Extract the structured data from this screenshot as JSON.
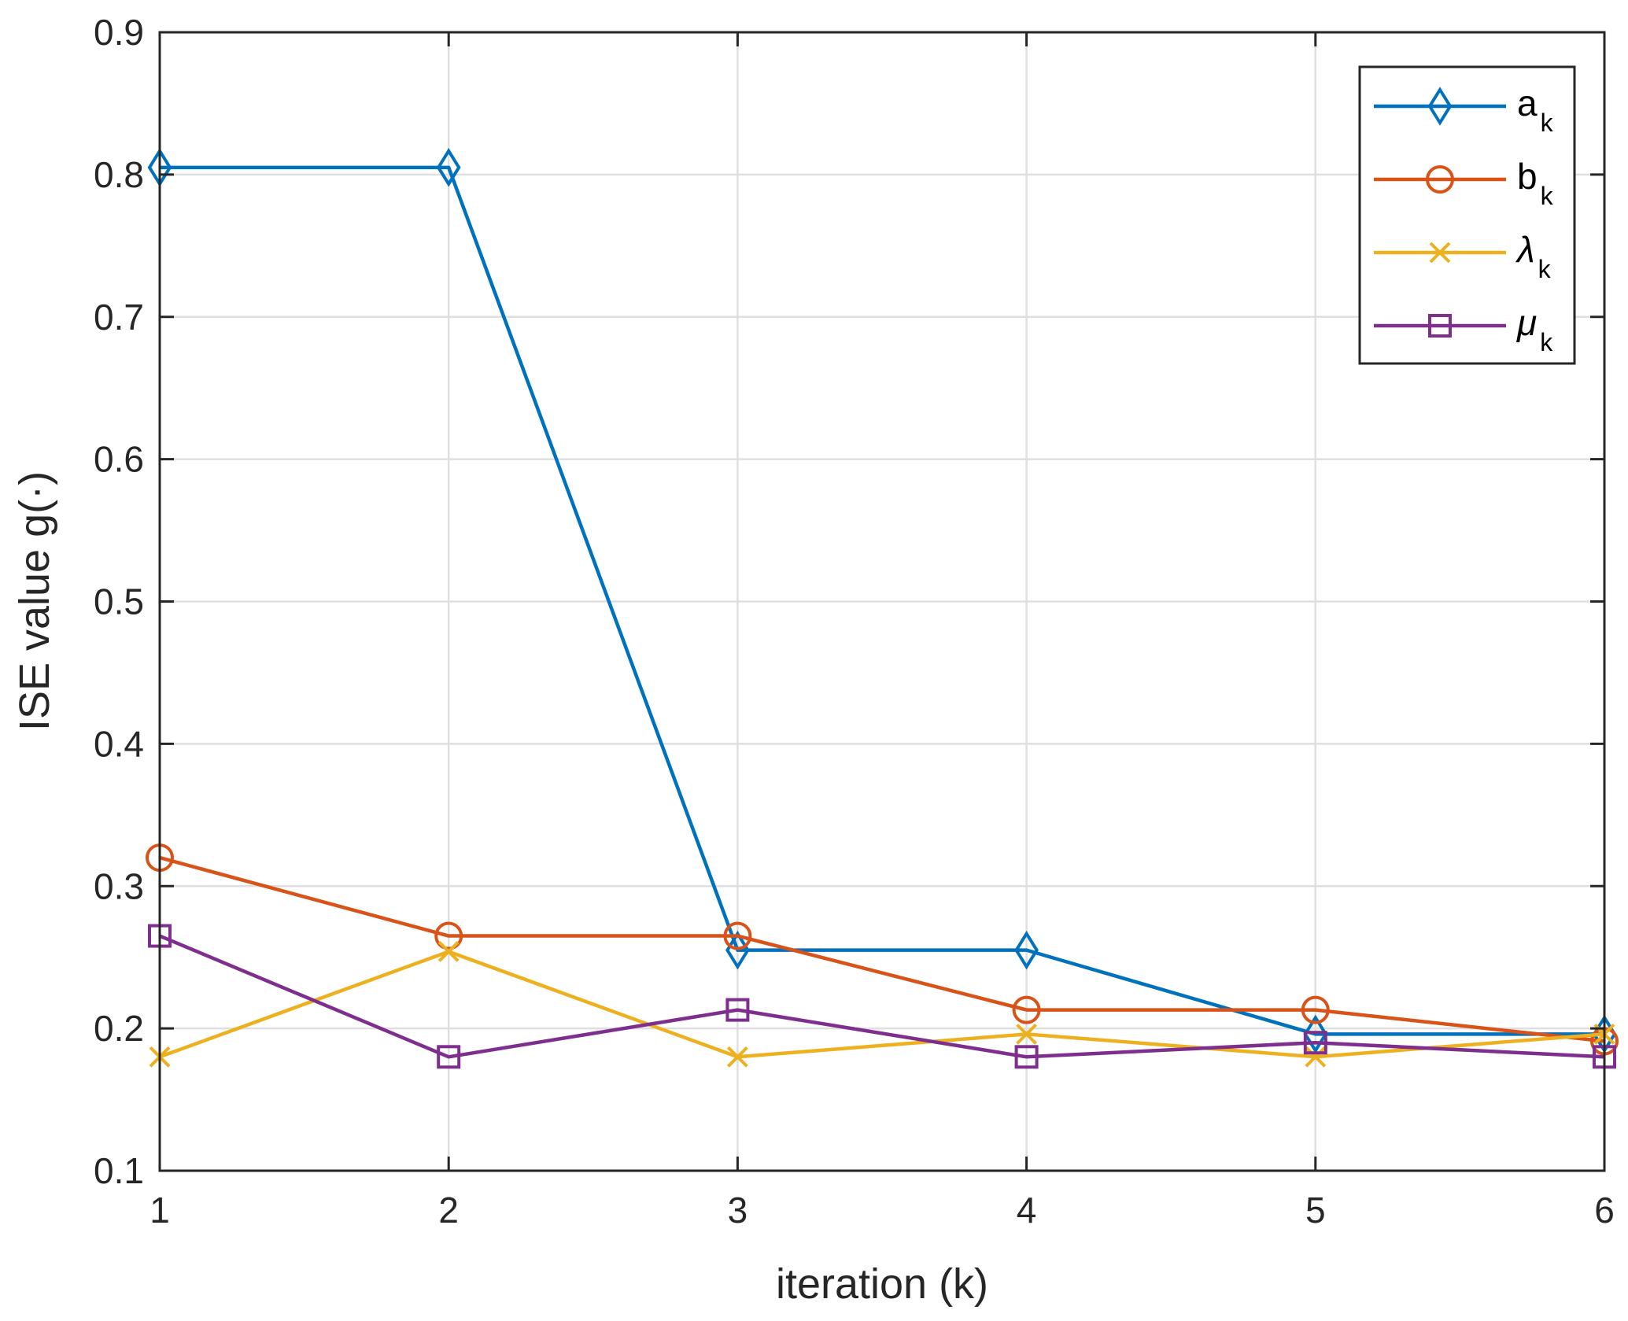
{
  "chart_data": {
    "type": "line",
    "title": "",
    "xlabel": "iteration (k)",
    "ylabel": "ISE value g(·)",
    "x": [
      1,
      2,
      3,
      4,
      5,
      6
    ],
    "xlim": [
      1,
      6
    ],
    "ylim": [
      0.1,
      0.9
    ],
    "xticks": [
      "1",
      "2",
      "3",
      "4",
      "5",
      "6"
    ],
    "yticks": [
      "0.1",
      "0.2",
      "0.3",
      "0.4",
      "0.5",
      "0.6",
      "0.7",
      "0.8",
      "0.9"
    ],
    "grid": true,
    "legend_position": "top-right",
    "series": [
      {
        "name": "a",
        "subscript": "k",
        "italic": false,
        "marker": "diamond",
        "color": "#0072BD",
        "values": [
          0.805,
          0.805,
          0.255,
          0.255,
          0.196,
          0.196
        ]
      },
      {
        "name": "b",
        "subscript": "k",
        "italic": false,
        "marker": "circle",
        "color": "#D95319",
        "values": [
          0.32,
          0.265,
          0.265,
          0.213,
          0.213,
          0.191
        ]
      },
      {
        "name": "λ",
        "subscript": "k",
        "italic": true,
        "marker": "x",
        "color": "#EDB120",
        "values": [
          0.18,
          0.254,
          0.18,
          0.196,
          0.18,
          0.196
        ]
      },
      {
        "name": "μ",
        "subscript": "k",
        "italic": true,
        "marker": "square",
        "color": "#7E2F8E",
        "values": [
          0.265,
          0.18,
          0.213,
          0.18,
          0.19,
          0.18
        ]
      }
    ]
  }
}
